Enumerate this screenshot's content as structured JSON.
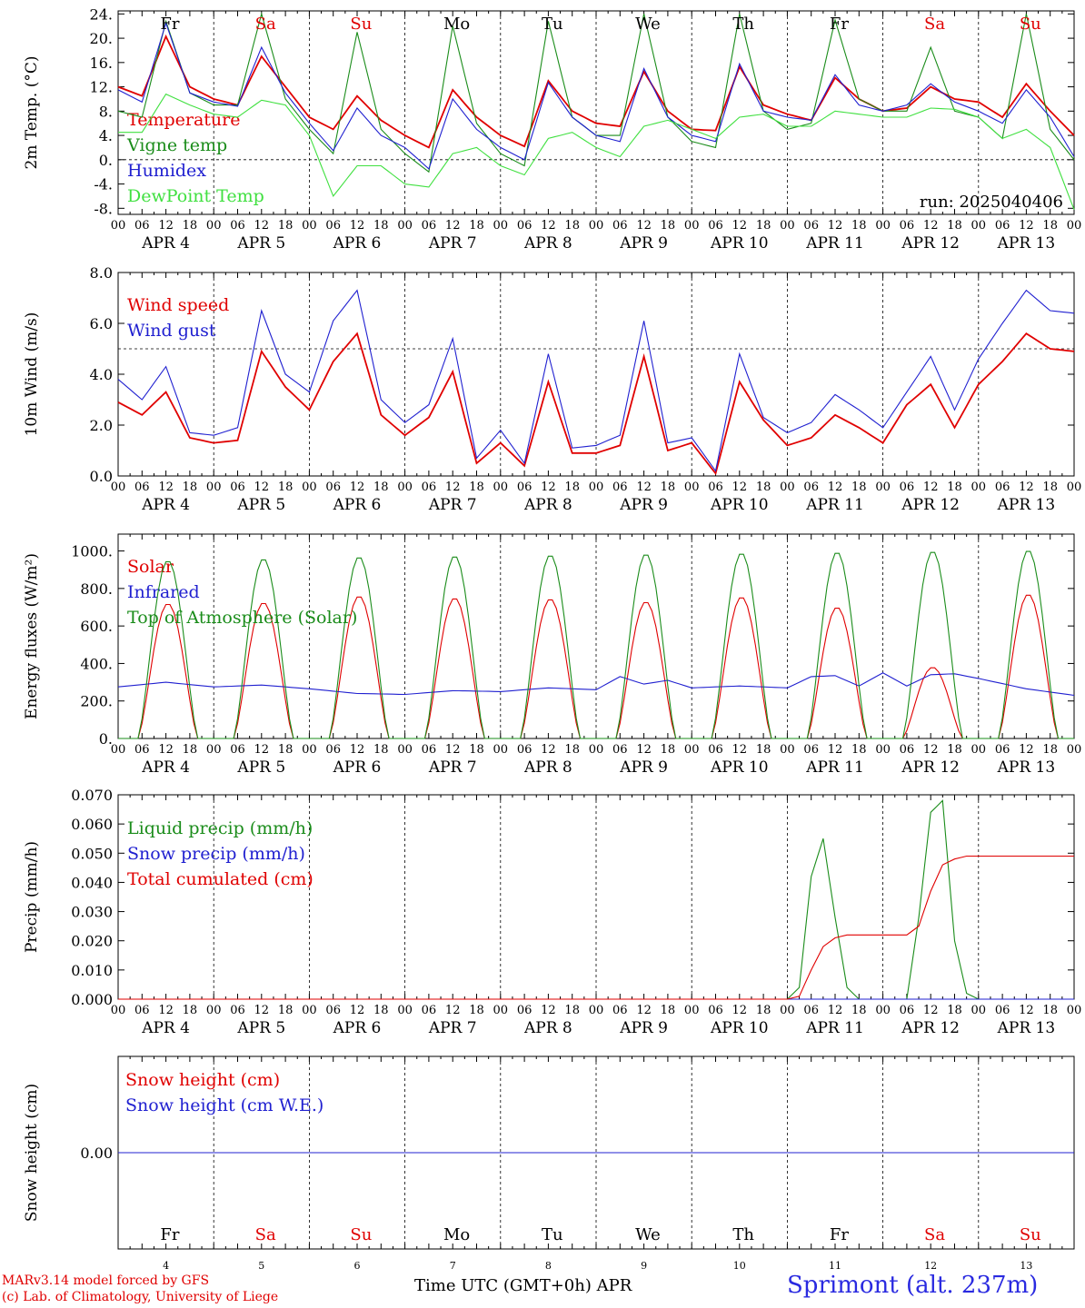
{
  "run_label": "run: 2025040406",
  "day_names": [
    {
      "name": "Fr",
      "color": "#000000"
    },
    {
      "name": "Sa",
      "color": "#e00000"
    },
    {
      "name": "Su",
      "color": "#e00000"
    },
    {
      "name": "Mo",
      "color": "#000000"
    },
    {
      "name": "Tu",
      "color": "#000000"
    },
    {
      "name": "We",
      "color": "#000000"
    },
    {
      "name": "Th",
      "color": "#000000"
    },
    {
      "name": "Fr",
      "color": "#000000"
    },
    {
      "name": "Sa",
      "color": "#e00000"
    },
    {
      "name": "Su",
      "color": "#e00000"
    }
  ],
  "date_labels": [
    "APR  4",
    "APR  5",
    "APR  6",
    "APR  7",
    "APR  8",
    "APR  9",
    "APR 10",
    "APR 11",
    "APR 12",
    "APR 13"
  ],
  "hour_ticks": [
    "00",
    "06",
    "12",
    "18"
  ],
  "day_numbers": [
    "4",
    "5",
    "6",
    "7",
    "8",
    "9",
    "10",
    "11",
    "12",
    "13"
  ],
  "footer": {
    "model": "MARv3.14 model forced by GFS",
    "credit": "(c) Lab. of Climatology, University of Liege",
    "x_title": "Time UTC (GMT+0h) APR",
    "station": "Sprimont (alt. 237m)"
  },
  "colors": {
    "red": "#e00000",
    "green": "#1a8c1a",
    "blue": "#2020d0",
    "lightgreen": "#40e040"
  },
  "chart_data": [
    {
      "type": "line",
      "ylabel": "2m Temp. (°C)",
      "ylim": [
        -9,
        24.5
      ],
      "yticks": [
        -8,
        -4,
        0,
        4,
        8,
        12,
        16,
        20,
        24
      ],
      "ytick_labels": [
        "-8.",
        "-4.",
        "0.",
        "4.",
        "8.",
        "12.",
        "16.",
        "20.",
        "24."
      ],
      "x_unit": "hours since 2025-04-04 00 UTC",
      "reference_line": 0,
      "series": [
        {
          "name": "Temperature",
          "color": "#e00000",
          "x": [
            0,
            6,
            12,
            18,
            24,
            30,
            36,
            42,
            48,
            54,
            60,
            66,
            72,
            78,
            84,
            90,
            96,
            102,
            108,
            114,
            120,
            126,
            132,
            138,
            144,
            150,
            156,
            162,
            168,
            174,
            180,
            186,
            192,
            198,
            204,
            210,
            216,
            222,
            228,
            234,
            240
          ],
          "values": [
            12,
            10.5,
            20.3,
            12,
            10,
            9,
            17,
            12,
            7,
            5,
            10.5,
            6.5,
            4,
            2,
            11.5,
            7,
            4,
            2.2,
            13,
            8,
            6,
            5.5,
            14.5,
            8,
            5,
            4.8,
            15.3,
            9,
            7.5,
            6.5,
            13.5,
            10,
            8,
            8.5,
            12,
            10,
            9.5,
            7,
            12.5,
            8,
            4
          ]
        },
        {
          "name": "Vigne temp",
          "color": "#1a8c1a",
          "x": [
            0,
            6,
            12,
            18,
            24,
            30,
            36,
            42,
            48,
            54,
            60,
            66,
            72,
            78,
            84,
            90,
            96,
            102,
            108,
            114,
            120,
            126,
            132,
            138,
            144,
            150,
            156,
            162,
            168,
            174,
            180,
            186,
            192,
            198,
            204,
            210,
            216,
            222,
            228,
            234,
            240
          ],
          "values": [
            8,
            7,
            22.8,
            11,
            9,
            9,
            24,
            10,
            5,
            1,
            21,
            5,
            1,
            -2,
            22,
            6,
            1,
            -1,
            22.8,
            7,
            4,
            4,
            24,
            7,
            3,
            2,
            24,
            8,
            5,
            6,
            23,
            10,
            8,
            8,
            18.5,
            8,
            7,
            3.5,
            24,
            5,
            0
          ]
        },
        {
          "name": "Humidex",
          "color": "#2020d0",
          "x": [
            0,
            6,
            12,
            18,
            24,
            30,
            36,
            42,
            48,
            54,
            60,
            66,
            72,
            78,
            84,
            90,
            96,
            102,
            108,
            114,
            120,
            126,
            132,
            138,
            144,
            150,
            156,
            162,
            168,
            174,
            180,
            186,
            192,
            198,
            204,
            210,
            216,
            222,
            228,
            234,
            240
          ],
          "values": [
            11.5,
            9.5,
            22.5,
            11,
            9.5,
            8.8,
            18.5,
            11,
            6,
            1.5,
            8.5,
            4,
            2,
            -1.5,
            10,
            5,
            2,
            0,
            12.7,
            7,
            4,
            3,
            15,
            7,
            4,
            3,
            15.8,
            8,
            7,
            6.5,
            14,
            9,
            8,
            9,
            12.5,
            9.5,
            8,
            6,
            11.5,
            7,
            0.5
          ]
        },
        {
          "name": "DewPoint Temp",
          "color": "#40e040",
          "x": [
            0,
            6,
            12,
            18,
            24,
            30,
            36,
            42,
            48,
            54,
            60,
            66,
            72,
            78,
            84,
            90,
            96,
            102,
            108,
            114,
            120,
            126,
            132,
            138,
            144,
            150,
            156,
            162,
            168,
            174,
            180,
            186,
            192,
            198,
            204,
            210,
            216,
            222,
            228,
            234,
            240
          ],
          "values": [
            4.5,
            4.5,
            10.8,
            9,
            7.5,
            7,
            9.8,
            9,
            4,
            -6,
            -1,
            -1,
            -4,
            -4.5,
            1,
            2,
            -1,
            -2.5,
            3.5,
            4.5,
            2,
            0.5,
            5.5,
            6.5,
            5,
            3.5,
            7,
            7.5,
            5.5,
            5.5,
            8,
            7.5,
            7,
            7,
            8.5,
            8.3,
            7,
            3.5,
            5,
            2,
            -8.2
          ]
        }
      ]
    },
    {
      "type": "line",
      "ylabel": "10m Wind (m/s)",
      "ylim": [
        0,
        8
      ],
      "yticks": [
        0,
        2,
        4,
        6,
        8
      ],
      "ytick_labels": [
        "0.0",
        "2.0",
        "4.0",
        "6.0",
        "8.0"
      ],
      "x_unit": "hours since 2025-04-04 00 UTC",
      "reference_line": 5,
      "series": [
        {
          "name": "Wind speed",
          "color": "#e00000",
          "x": [
            0,
            6,
            12,
            18,
            24,
            30,
            36,
            42,
            48,
            54,
            60,
            66,
            72,
            78,
            84,
            90,
            96,
            102,
            108,
            114,
            120,
            126,
            132,
            138,
            144,
            150,
            156,
            162,
            168,
            174,
            180,
            186,
            192,
            198,
            204,
            210,
            216,
            222,
            228,
            234,
            240
          ],
          "values": [
            2.9,
            2.4,
            3.3,
            1.5,
            1.3,
            1.4,
            4.9,
            3.5,
            2.6,
            4.5,
            5.6,
            2.4,
            1.6,
            2.3,
            4.1,
            0.5,
            1.3,
            0.4,
            3.7,
            0.9,
            0.9,
            1.2,
            4.7,
            1.0,
            1.3,
            0.1,
            3.7,
            2.2,
            1.2,
            1.5,
            2.4,
            1.9,
            1.3,
            2.8,
            3.6,
            1.9,
            3.6,
            4.5,
            5.6,
            5.0,
            4.9
          ]
        },
        {
          "name": "Wind gust",
          "color": "#2020d0",
          "x": [
            0,
            6,
            12,
            18,
            24,
            30,
            36,
            42,
            48,
            54,
            60,
            66,
            72,
            78,
            84,
            90,
            96,
            102,
            108,
            114,
            120,
            126,
            132,
            138,
            144,
            150,
            156,
            162,
            168,
            174,
            180,
            186,
            192,
            198,
            204,
            210,
            216,
            222,
            228,
            234,
            240
          ],
          "values": [
            3.8,
            3.0,
            4.3,
            1.7,
            1.6,
            1.9,
            6.5,
            4.0,
            3.3,
            6.1,
            7.3,
            3.0,
            2.1,
            2.8,
            5.4,
            0.7,
            1.8,
            0.5,
            4.8,
            1.1,
            1.2,
            1.6,
            6.1,
            1.3,
            1.5,
            0.2,
            4.8,
            2.3,
            1.7,
            2.1,
            3.2,
            2.6,
            1.9,
            3.3,
            4.7,
            2.6,
            4.6,
            6.0,
            7.3,
            6.5,
            6.4
          ]
        }
      ]
    },
    {
      "type": "line",
      "ylabel": "Energy fluxes (W/m²)",
      "ylim": [
        0,
        1090
      ],
      "yticks": [
        0,
        200,
        400,
        600,
        800,
        1000
      ],
      "ytick_labels": [
        "0.",
        "200.",
        "400.",
        "600.",
        "800.",
        "1000."
      ],
      "x_unit": "hours since 2025-04-04 00 UTC",
      "series": [
        {
          "name": "Solar",
          "color": "#e00000",
          "peaks": [
            720,
            725,
            760,
            750,
            745,
            730,
            755,
            700,
            380,
            770
          ],
          "peak_hour": 13
        },
        {
          "name": "Infrared",
          "color": "#2020d0",
          "x": [
            0,
            12,
            24,
            36,
            48,
            60,
            72,
            84,
            96,
            108,
            120,
            126,
            132,
            138,
            144,
            156,
            168,
            174,
            180,
            186,
            192,
            198,
            204,
            210,
            216,
            228,
            240
          ],
          "values": [
            275,
            300,
            275,
            285,
            265,
            240,
            235,
            255,
            250,
            270,
            260,
            330,
            290,
            310,
            270,
            280,
            270,
            330,
            335,
            280,
            350,
            280,
            340,
            345,
            320,
            265,
            230
          ]
        },
        {
          "name": "Top of Atmosphere (Solar)",
          "color": "#1a8c1a",
          "peaks": [
            950,
            960,
            970,
            975,
            980,
            985,
            990,
            995,
            1000,
            1005
          ],
          "peak_hour": 13
        }
      ]
    },
    {
      "type": "line",
      "ylabel": "Precip (mm/h)",
      "ylim": [
        0,
        0.07
      ],
      "yticks": [
        0,
        0.01,
        0.02,
        0.03,
        0.04,
        0.05,
        0.06,
        0.07
      ],
      "ytick_labels": [
        "0.000",
        "0.010",
        "0.020",
        "0.030",
        "0.040",
        "0.050",
        "0.060",
        "0.070"
      ],
      "x_unit": "hours since 2025-04-04 00 UTC",
      "series": [
        {
          "name": "Liquid precip (mm/h)",
          "color": "#1a8c1a",
          "x": [
            0,
            168,
            171,
            174,
            177,
            180,
            183,
            186,
            192,
            198,
            201,
            204,
            207,
            210,
            213,
            216,
            240
          ],
          "values": [
            0,
            0,
            0.004,
            0.042,
            0.055,
            0.028,
            0.004,
            0,
            0,
            0,
            0.028,
            0.064,
            0.068,
            0.02,
            0.002,
            0,
            0
          ]
        },
        {
          "name": "Snow precip (mm/h)",
          "color": "#2020d0",
          "x": [
            0,
            240
          ],
          "values": [
            0,
            0
          ]
        },
        {
          "name": "Total cumulated (cm)",
          "color": "#e00000",
          "x": [
            0,
            168,
            171,
            174,
            177,
            180,
            183,
            186,
            198,
            201,
            204,
            207,
            210,
            213,
            216,
            240
          ],
          "values": [
            0,
            0,
            0.001,
            0.01,
            0.018,
            0.021,
            0.022,
            0.022,
            0.022,
            0.025,
            0.037,
            0.046,
            0.048,
            0.049,
            0.049,
            0.049
          ]
        }
      ]
    },
    {
      "type": "line",
      "ylabel": "Snow height (cm)",
      "ylim": [
        -1,
        1
      ],
      "yticks": [
        0
      ],
      "ytick_labels": [
        "0.00"
      ],
      "x_unit": "hours since 2025-04-04 00 UTC",
      "series": [
        {
          "name": "Snow height (cm)",
          "color": "#e00000",
          "x": [
            0,
            240
          ],
          "values": [
            0,
            0
          ]
        },
        {
          "name": "Snow height (cm W.E.)",
          "color": "#2020d0",
          "x": [
            0,
            240
          ],
          "values": [
            0,
            0
          ]
        }
      ]
    }
  ]
}
